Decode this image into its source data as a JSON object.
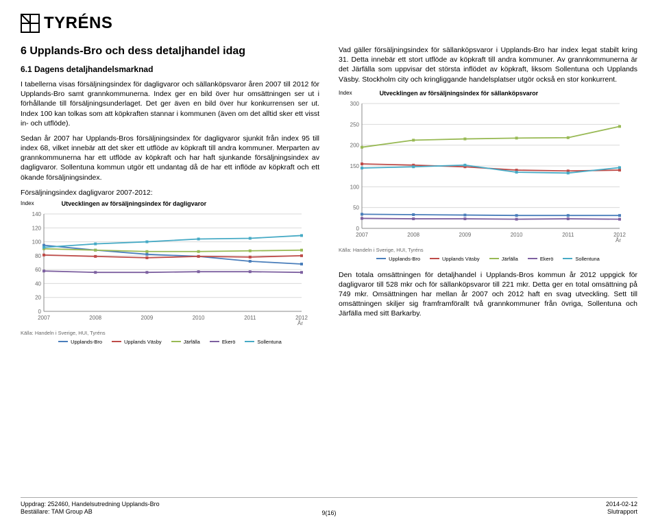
{
  "logo_text": "TYRÉNS",
  "heading": "6   Upplands-Bro och dess detaljhandel idag",
  "subheading": "6.1 Dagens detaljhandelsmarknad",
  "left_paras": [
    "I tabellerna visas försäljningsindex för dagligvaror och sällanköpsvaror åren 2007 till 2012 för Upplands-Bro samt grannkommunerna. Index ger en bild över hur omsättningen ser ut i förhållande till försäljningsunderlaget. Det ger även en bild över hur konkurrensen ser ut. Index 100 kan tolkas som att köpkraften stannar i kommunen (även om det alltid sker ett visst in- och utflöde).",
    "Sedan år 2007 har Upplands-Bros försäljningsindex för dagligvaror sjunkit från index 95 till index 68, vilket innebär att det sker ett utflöde av köpkraft till andra kommuner. Merparten av grannkommunerna har ett utflöde av köpkraft och har haft sjunkande försäljningsindex av dagligvaror. Sollentuna kommun utgör ett undantag då de har ett inflöde av köpkraft och ett ökande försäljningsindex.",
    "Försäljningsindex dagligvaror 2007-2012:"
  ],
  "right_paras": [
    "Vad gäller försäljningsindex för sällanköpsvaror i Upplands-Bro har index legat stabilt kring 31. Detta innebär ett stort utflöde av köpkraft till andra kommuner. Av grannkommunerna är det Järfälla som uppvisar det största inflödet av köpkraft, liksom Sollentuna och Upplands Väsby. Stockholm city och kringliggande handelsplatser utgör också en stor konkurrent."
  ],
  "right_bottom_para": "Den totala omsättningen för detaljhandel i Upplands-Bros kommun år 2012 uppgick för dagligvaror till 528 mkr och för sällanköpsvaror till 221 mkr. Detta ger en total omsättning på 749 mkr. Omsättningen har mellan år 2007 och 2012 haft en svag utveckling. Sett till omsättningen skiljer sig framframförallt två grannkommuner från övriga, Sollentuna och Järfälla med sitt Barkarby.",
  "chart_daily": {
    "type": "line",
    "title": "Utvecklingen av försäljningsindex för dagligvaror",
    "y_axis_label": "Index",
    "x_axis_label": "År",
    "categories": [
      "2007",
      "2008",
      "2009",
      "2010",
      "2011",
      "2012"
    ],
    "ylim": [
      0,
      140
    ],
    "ytick_step": 20,
    "grid_color": "#d9d9d9",
    "series": [
      {
        "name": "Upplands-Bro",
        "color": "#4a7ebb",
        "values": [
          95,
          88,
          82,
          79,
          72,
          68
        ]
      },
      {
        "name": "Upplands Väsby",
        "color": "#be4b48",
        "values": [
          81,
          79,
          77,
          79,
          78,
          80
        ]
      },
      {
        "name": "Järfälla",
        "color": "#98b954",
        "values": [
          90,
          88,
          86,
          86,
          87,
          88
        ]
      },
      {
        "name": "Ekerö",
        "color": "#7d60a0",
        "values": [
          58,
          56,
          56,
          57,
          57,
          56
        ]
      },
      {
        "name": "Sollentuna",
        "color": "#46aac5",
        "values": [
          92,
          97,
          100,
          104,
          105,
          109
        ]
      }
    ],
    "source": "Källa: Handeln i Sverige, HUI, Tyréns"
  },
  "chart_sallan": {
    "type": "line",
    "title": "Utvecklingen av försäljningsindex för sällanköpsvaror",
    "y_axis_label": "Index",
    "x_axis_label": "År",
    "categories": [
      "2007",
      "2008",
      "2009",
      "2010",
      "2011",
      "2012"
    ],
    "ylim": [
      0,
      300
    ],
    "ytick_step": 50,
    "grid_color": "#d9d9d9",
    "series": [
      {
        "name": "Upplands-Bro",
        "color": "#4a7ebb",
        "values": [
          34,
          33,
          32,
          31,
          31,
          31
        ]
      },
      {
        "name": "Upplands Väsby",
        "color": "#be4b48",
        "values": [
          155,
          152,
          148,
          140,
          138,
          140
        ]
      },
      {
        "name": "Järfälla",
        "color": "#98b954",
        "values": [
          195,
          212,
          215,
          217,
          218,
          245
        ]
      },
      {
        "name": "Ekerö",
        "color": "#7d60a0",
        "values": [
          24,
          23,
          23,
          22,
          23,
          22
        ]
      },
      {
        "name": "Sollentuna",
        "color": "#46aac5",
        "values": [
          145,
          148,
          152,
          135,
          133,
          146
        ]
      }
    ],
    "source": "Källa: Handeln i Sverige, HUI, Tyréns"
  },
  "footer": {
    "left1": "Uppdrag: 252460, Handelsutredning Upplands-Bro",
    "left2": "Beställare: TAM Group AB",
    "right1": "2014-02-12",
    "right2": "Slutrapport",
    "page": "9(16)"
  }
}
